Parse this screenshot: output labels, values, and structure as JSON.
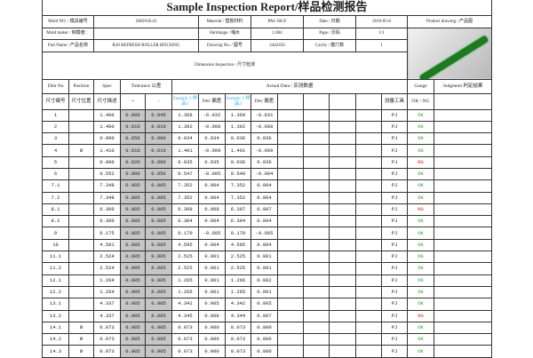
{
  "title": "Sample Inspection Report/样品检测报告",
  "header": {
    "mold_no_label": "Mold NO. / 模具编号",
    "mold_no": "SM2018.43",
    "material_label": "Material / 塑胶材料",
    "material": "PA6 30GF",
    "date_label": "Date / 日期",
    "date": "2019-05-8",
    "drawing_label": "Product drawing / 产品图",
    "mold_maker_label": "Mold maker / 制模者：",
    "mold_maker": "",
    "shrinkage_label": "Shrinkage / 缩水",
    "shrinkage": "1.004",
    "page_label": "Page / 页码",
    "page": "1/1",
    "part_name_label": "Part Name / 产品名称",
    "part_name": "R30 REFRESH ROLLER HOUSING",
    "drawing_no_label": "Drawing No. / 图号",
    "drawing_no": "2442456",
    "cavity_label": "Cavity / 模穴数",
    "cavity": "1"
  },
  "dimension_inspection": "Dimension Inspection / 尺寸检测",
  "columns": {
    "dim_no": "Dim No",
    "dim_no_cn": "尺寸编号",
    "position": "Position",
    "position_cn": "尺寸位置",
    "spec": "Spec",
    "spec_cn": "尺寸描述",
    "tolerance": "Tolerance 公差",
    "plus": "+",
    "minus": "-",
    "actual": "Actual Data / 实测数据",
    "sample1": "Sample 1 样品1",
    "dev": "Dev 偏差",
    "sample2": "Sample 2 样品2",
    "gauge": "Gauge",
    "gauge_cn": "测量工具",
    "judgment": "Judgment 判定结果",
    "ok_ng": "OK / NG",
    "remarks": "备注"
  },
  "rows": [
    [
      "1",
      "",
      "1.400",
      "0.000",
      "0.045",
      "1.368",
      "-0.032",
      "1.369",
      "-0.031",
      "PJ",
      "OK"
    ],
    [
      "2",
      "",
      "1.400",
      "0.010",
      "0.010",
      "1.392",
      "-0.008",
      "1.392",
      "-0.008",
      "PJ",
      "OK"
    ],
    [
      "3",
      "",
      "0.000",
      "0.050",
      "0.000",
      "0.034",
      "0.034",
      "0.036",
      "0.036",
      "PJ",
      "OK"
    ],
    [
      "4",
      "Ø",
      "1.410",
      "0.010",
      "0.010",
      "1.401",
      "-0.009",
      "1.401",
      "-0.009",
      "PJ",
      "OK"
    ],
    [
      "5",
      "",
      "0.000",
      "0.020",
      "0.000",
      "0.035",
      "0.035",
      "0.036",
      "0.036",
      "PJ",
      "NG"
    ],
    [
      "6",
      "",
      "0.552",
      "0.000",
      "0.050",
      "0.547",
      "-0.005",
      "0.548",
      "-0.004",
      "PJ",
      "OK"
    ],
    [
      "7.1",
      "",
      "7.348",
      "0.005",
      "0.005",
      "7.352",
      "0.004",
      "7.352",
      "0.004",
      "PJ",
      "OK"
    ],
    [
      "7.2",
      "",
      "7.348",
      "0.005",
      "0.005",
      "7.352",
      "0.004",
      "7.352",
      "0.004",
      "PJ",
      "OK"
    ],
    [
      "8.1",
      "",
      "6.300",
      "0.005",
      "0.005",
      "6.308",
      "0.008",
      "6.307",
      "0.007",
      "PJ",
      "NG"
    ],
    [
      "8.2",
      "",
      "6.300",
      "0.005",
      "0.005",
      "6.304",
      "0.004",
      "6.304",
      "0.004",
      "PJ",
      "OK"
    ],
    [
      "9",
      "",
      "0.175",
      "0.005",
      "0.005",
      "0.170",
      "-0.005",
      "0.170",
      "-0.005",
      "PJ",
      "OK"
    ],
    [
      "10",
      "",
      "4.591",
      "0.005",
      "0.005",
      "4.595",
      "0.004",
      "4.595",
      "0.004",
      "PJ",
      "OK"
    ],
    [
      "11.1",
      "",
      "2.524",
      "0.005",
      "0.005",
      "2.525",
      "0.001",
      "2.525",
      "0.001",
      "PJ",
      "OK"
    ],
    [
      "11.2",
      "",
      "2.524",
      "0.005",
      "0.005",
      "2.525",
      "0.001",
      "2.525",
      "0.001",
      "PJ",
      "OK"
    ],
    [
      "12.1",
      "",
      "1.264",
      "0.005",
      "0.005",
      "1.265",
      "0.001",
      "1.266",
      "0.002",
      "PJ",
      "OK"
    ],
    [
      "12.2",
      "",
      "1.264",
      "0.005",
      "0.005",
      "1.265",
      "0.001",
      "1.265",
      "0.001",
      "PJ",
      "OK"
    ],
    [
      "13.1",
      "",
      "4.337",
      "0.005",
      "0.005",
      "4.342",
      "0.005",
      "4.342",
      "0.005",
      "PJ",
      "OK"
    ],
    [
      "13.2",
      "",
      "4.337",
      "0.005",
      "0.005",
      "4.345",
      "0.008",
      "4.344",
      "0.007",
      "PJ",
      "NG"
    ],
    [
      "14.1",
      "Ø",
      "0.073",
      "0.005",
      "0.005",
      "0.073",
      "0.000",
      "0.073",
      "0.000",
      "PJ",
      "OK"
    ],
    [
      "14.2",
      "Ø",
      "0.073",
      "0.005",
      "0.005",
      "0.073",
      "0.000",
      "0.073",
      "0.000",
      "PJ",
      "OK"
    ],
    [
      "14.3",
      "Ø",
      "0.073",
      "0.005",
      "0.005",
      "0.073",
      "0.000",
      "0.073",
      "0.000",
      "PJ",
      "OK"
    ]
  ],
  "colors": {
    "ok": "#2a9a2a",
    "ng": "#e02020",
    "sample_header": "#3ab0e0",
    "tolerance_fill": "#c6c6c6"
  }
}
